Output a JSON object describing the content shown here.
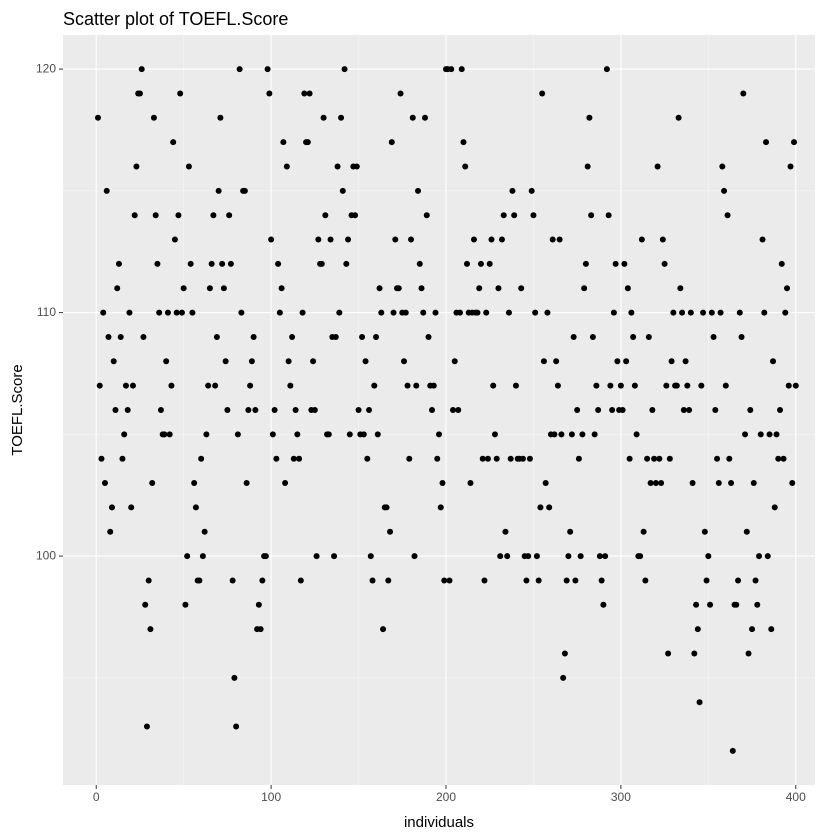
{
  "chart_data": {
    "type": "scatter",
    "title": "Scatter plot of TOEFL.Score",
    "x_label": "individuals",
    "y_label": "TOEFL.Score",
    "color": "#000000",
    "grid": true,
    "xlim": [
      -19,
      411
    ],
    "ylim": [
      90.6,
      121.4
    ],
    "xticks": [
      0,
      100,
      200,
      300,
      400
    ],
    "yticks": [
      100,
      110,
      120
    ],
    "xminor": [
      50,
      150,
      250,
      350
    ],
    "yminor": [
      95,
      105,
      115
    ],
    "x": [
      1,
      2,
      3,
      4,
      5,
      6,
      7,
      8,
      9,
      10,
      11,
      12,
      13,
      14,
      15,
      16,
      17,
      18,
      19,
      20,
      21,
      22,
      23,
      24,
      25,
      26,
      27,
      28,
      29,
      30,
      31,
      32,
      33,
      34,
      35,
      36,
      37,
      38,
      39,
      40,
      41,
      42,
      43,
      44,
      45,
      46,
      47,
      48,
      49,
      50,
      51,
      52,
      53,
      54,
      55,
      56,
      57,
      58,
      59,
      60,
      61,
      62,
      63,
      64,
      65,
      66,
      67,
      68,
      69,
      70,
      71,
      72,
      73,
      74,
      75,
      76,
      77,
      78,
      79,
      80,
      81,
      82,
      83,
      84,
      85,
      86,
      87,
      88,
      89,
      90,
      91,
      92,
      93,
      94,
      95,
      96,
      97,
      98,
      99,
      100,
      101,
      102,
      103,
      104,
      105,
      106,
      107,
      108,
      109,
      110,
      111,
      112,
      113,
      114,
      115,
      116,
      117,
      118,
      119,
      120,
      121,
      122,
      123,
      124,
      125,
      126,
      127,
      128,
      129,
      130,
      131,
      132,
      133,
      134,
      135,
      136,
      137,
      138,
      139,
      140,
      141,
      142,
      143,
      144,
      145,
      146,
      147,
      148,
      149,
      150,
      151,
      152,
      153,
      154,
      155,
      156,
      157,
      158,
      159,
      160,
      161,
      162,
      163,
      164,
      165,
      166,
      167,
      168,
      169,
      170,
      171,
      172,
      173,
      174,
      175,
      176,
      177,
      178,
      179,
      180,
      181,
      182,
      183,
      184,
      185,
      186,
      187,
      188,
      189,
      190,
      191,
      192,
      193,
      194,
      195,
      196,
      197,
      198,
      199,
      200,
      201,
      202,
      203,
      204,
      205,
      206,
      207,
      208,
      209,
      210,
      211,
      212,
      213,
      214,
      215,
      216,
      217,
      218,
      219,
      220,
      221,
      222,
      223,
      224,
      225,
      226,
      227,
      228,
      229,
      230,
      231,
      232,
      233,
      234,
      235,
      236,
      237,
      238,
      239,
      240,
      241,
      242,
      243,
      244,
      245,
      246,
      247,
      248,
      249,
      250,
      251,
      252,
      253,
      254,
      255,
      256,
      257,
      258,
      259,
      260,
      261,
      262,
      263,
      264,
      265,
      266,
      267,
      268,
      269,
      270,
      271,
      272,
      273,
      274,
      275,
      276,
      277,
      278,
      279,
      280,
      281,
      282,
      283,
      284,
      285,
      286,
      287,
      288,
      289,
      290,
      291,
      292,
      293,
      294,
      295,
      296,
      297,
      298,
      299,
      300,
      301,
      302,
      303,
      304,
      305,
      306,
      307,
      308,
      309,
      310,
      311,
      312,
      313,
      314,
      315,
      316,
      317,
      318,
      319,
      320,
      321,
      322,
      323,
      324,
      325,
      326,
      327,
      328,
      329,
      330,
      331,
      332,
      333,
      334,
      335,
      336,
      337,
      338,
      339,
      340,
      341,
      342,
      343,
      344,
      345,
      346,
      347,
      348,
      349,
      350,
      351,
      352,
      353,
      354,
      355,
      356,
      357,
      358,
      359,
      360,
      361,
      362,
      363,
      364,
      365,
      366,
      367,
      368,
      369,
      370,
      371,
      372,
      373,
      374,
      375,
      376,
      377,
      378,
      379,
      380,
      381,
      382,
      383,
      384,
      385,
      386,
      387,
      388,
      389,
      390,
      391,
      392,
      393,
      394,
      395,
      396,
      397,
      398,
      399,
      400
    ],
    "values": [
      118,
      107,
      104,
      110,
      103,
      115,
      109,
      101,
      102,
      108,
      106,
      111,
      112,
      109,
      104,
      105,
      107,
      106,
      110,
      102,
      107,
      114,
      116,
      119,
      119,
      120,
      109,
      98,
      93,
      99,
      97,
      103,
      118,
      114,
      112,
      110,
      106,
      105,
      105,
      108,
      110,
      105,
      107,
      117,
      113,
      110,
      114,
      119,
      110,
      111,
      98,
      100,
      116,
      112,
      110,
      103,
      102,
      99,
      99,
      104,
      100,
      101,
      105,
      107,
      111,
      112,
      114,
      107,
      109,
      115,
      118,
      112,
      111,
      108,
      106,
      114,
      112,
      99,
      95,
      93,
      105,
      120,
      110,
      115,
      115,
      103,
      106,
      107,
      108,
      109,
      106,
      97,
      98,
      97,
      99,
      100,
      100,
      120,
      119,
      113,
      105,
      106,
      104,
      112,
      110,
      111,
      117,
      103,
      116,
      108,
      107,
      109,
      104,
      106,
      105,
      104,
      99,
      110,
      119,
      117,
      117,
      119,
      106,
      108,
      106,
      100,
      113,
      112,
      112,
      118,
      114,
      105,
      105,
      113,
      109,
      100,
      109,
      116,
      110,
      118,
      115,
      120,
      112,
      113,
      105,
      114,
      116,
      114,
      116,
      106,
      105,
      109,
      105,
      108,
      104,
      106,
      100,
      99,
      107,
      109,
      105,
      111,
      110,
      97,
      102,
      102,
      99,
      101,
      117,
      110,
      113,
      111,
      111,
      119,
      110,
      108,
      110,
      107,
      104,
      113,
      118,
      100,
      107,
      115,
      112,
      111,
      110,
      118,
      114,
      109,
      107,
      106,
      107,
      110,
      104,
      105,
      102,
      103,
      99,
      120,
      120,
      99,
      120,
      106,
      108,
      110,
      106,
      110,
      120,
      117,
      116,
      112,
      110,
      103,
      110,
      113,
      110,
      110,
      111,
      112,
      104,
      99,
      110,
      104,
      112,
      113,
      107,
      105,
      104,
      111,
      100,
      113,
      114,
      101,
      100,
      110,
      104,
      115,
      114,
      107,
      104,
      104,
      111,
      104,
      100,
      99,
      100,
      104,
      115,
      114,
      110,
      100,
      99,
      102,
      119,
      108,
      103,
      110,
      102,
      105,
      113,
      105,
      108,
      107,
      113,
      105,
      95,
      96,
      99,
      100,
      101,
      105,
      109,
      99,
      106,
      104,
      100,
      105,
      111,
      112,
      116,
      118,
      114,
      109,
      105,
      107,
      106,
      100,
      99,
      98,
      100,
      120,
      114,
      107,
      106,
      110,
      112,
      108,
      106,
      107,
      106,
      112,
      108,
      111,
      104,
      110,
      109,
      107,
      105,
      100,
      100,
      113,
      101,
      99,
      104,
      109,
      103,
      106,
      104,
      103,
      116,
      104,
      103,
      113,
      112,
      107,
      96,
      104,
      108,
      110,
      107,
      107,
      118,
      111,
      110,
      106,
      108,
      107,
      106,
      110,
      103,
      96,
      98,
      97,
      94,
      107,
      110,
      101,
      99,
      100,
      98,
      110,
      109,
      106,
      104,
      103,
      110,
      116,
      115,
      107,
      114,
      104,
      103,
      92,
      98,
      98,
      99,
      110,
      109,
      119,
      105,
      101,
      96,
      106,
      97,
      103,
      99,
      98,
      100,
      105,
      113,
      110,
      117,
      100,
      105,
      97,
      108,
      102,
      105,
      104,
      106,
      112,
      104,
      110,
      111,
      107,
      116,
      103,
      117,
      107
    ]
  }
}
